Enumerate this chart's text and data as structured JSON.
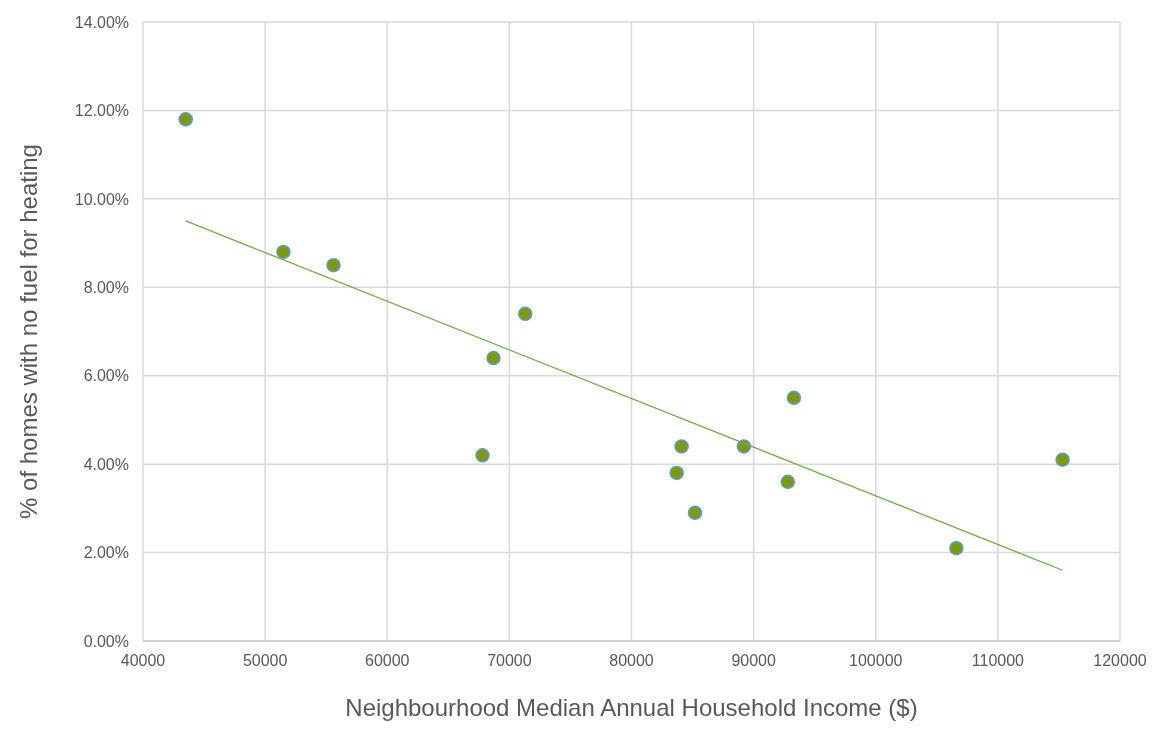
{
  "chart_data": {
    "type": "scatter",
    "xlabel": "Neighbourhood Median Annual Household Income ($)",
    "ylabel": "% of homes with no fuel for heating",
    "xlim": [
      40000,
      120000
    ],
    "xticks": [
      40000,
      50000,
      60000,
      70000,
      80000,
      90000,
      100000,
      110000,
      120000
    ],
    "ylim": [
      0,
      14
    ],
    "yticks": [
      {
        "value": 0,
        "label": "0.00%"
      },
      {
        "value": 2,
        "label": "2.00%"
      },
      {
        "value": 4,
        "label": "4.00%"
      },
      {
        "value": 6,
        "label": "6.00%"
      },
      {
        "value": 8,
        "label": "8.00%"
      },
      {
        "value": 10,
        "label": "10.00%"
      },
      {
        "value": 12,
        "label": "12.00%"
      },
      {
        "value": 14,
        "label": "14.00%"
      }
    ],
    "grid": true,
    "marker": "circle",
    "series": [
      {
        "type": "scatter",
        "color": "#7f9a00",
        "x": [
          43500,
          51500,
          55600,
          71300,
          68700,
          67800,
          93300,
          84100,
          89200,
          83700,
          92800,
          85200,
          106600,
          115300
        ],
        "values": [
          11.8,
          8.8,
          8.5,
          7.4,
          6.4,
          4.2,
          5.5,
          4.4,
          4.4,
          3.8,
          3.6,
          2.9,
          2.1,
          4.1
        ]
      },
      {
        "type": "line",
        "color": "#70ad47",
        "marker": "none",
        "x": [
          43500,
          115300
        ],
        "values": [
          9.5,
          1.6
        ]
      }
    ]
  }
}
